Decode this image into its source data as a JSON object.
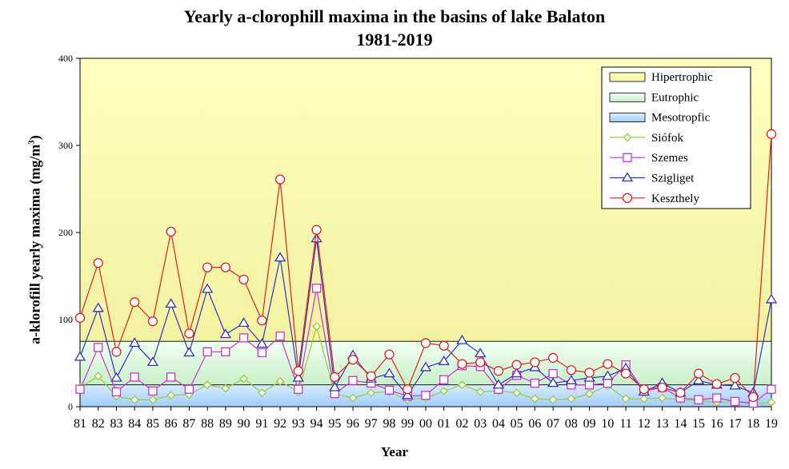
{
  "chart_data": {
    "type": "line",
    "title": "Yearly a-clorophill maxima in the basins of lake Balaton",
    "subtitle": "1981-2019",
    "ylabel": "a-klorofill yearly maxima (mg/m3)",
    "ylabel_main": "a-klorofill yearly maxima (mg/m",
    "ylabel_sup": "3",
    "ylabel_close": ")",
    "xlabel": "Year",
    "ylim": [
      0,
      400
    ],
    "yticks": [
      0,
      100,
      200,
      300,
      400
    ],
    "grid": false,
    "legend_position": "top-right",
    "categories": [
      "81",
      "82",
      "83",
      "84",
      "85",
      "86",
      "87",
      "88",
      "89",
      "90",
      "91",
      "92",
      "93",
      "94",
      "95",
      "96",
      "97",
      "98",
      "99",
      "00",
      "01",
      "02",
      "03",
      "04",
      "05",
      "06",
      "07",
      "08",
      "09",
      "10",
      "11",
      "12",
      "13",
      "14",
      "15",
      "16",
      "17",
      "18",
      "19"
    ],
    "bands": [
      {
        "name": "Hipertrophic",
        "from": 75,
        "to": 400,
        "color_top": "#ffffc0",
        "color_bottom": "#f2f2a0"
      },
      {
        "name": "Eutrophic",
        "from": 25,
        "to": 75,
        "color_top": "#f0fff0",
        "color_bottom": "#c8f0c8"
      },
      {
        "name": "Mesotropfic",
        "from": 0,
        "to": 25,
        "color_top": "#d8ecff",
        "color_bottom": "#9fcdfa"
      }
    ],
    "series": [
      {
        "name": "Siófok",
        "color": "#99cc33",
        "marker": "diamond",
        "values": [
          22,
          35,
          12,
          8,
          8,
          13,
          14,
          25,
          21,
          32,
          16,
          29,
          17,
          92,
          15,
          10,
          16,
          17,
          8,
          10,
          18,
          25,
          17,
          18,
          16,
          9,
          8,
          9,
          15,
          24,
          9,
          9,
          10,
          8,
          7,
          5,
          6,
          3,
          5
        ]
      },
      {
        "name": "Szemes",
        "color": "#cc33cc",
        "marker": "square",
        "values": [
          20,
          68,
          17,
          34,
          18,
          34,
          20,
          63,
          63,
          79,
          62,
          81,
          20,
          136,
          15,
          30,
          27,
          19,
          12,
          13,
          31,
          47,
          46,
          20,
          36,
          27,
          38,
          25,
          25,
          27,
          48,
          18,
          22,
          10,
          8,
          10,
          6,
          4,
          20
        ]
      },
      {
        "name": "Szigliget",
        "color": "#3333bb",
        "marker": "triangle",
        "values": [
          57,
          113,
          33,
          73,
          51,
          118,
          62,
          135,
          83,
          96,
          72,
          171,
          33,
          193,
          22,
          59,
          32,
          38,
          13,
          45,
          52,
          76,
          61,
          25,
          38,
          45,
          27,
          30,
          33,
          35,
          44,
          17,
          27,
          16,
          30,
          25,
          24,
          16,
          123
        ]
      },
      {
        "name": "Keszthely",
        "color": "#dd2222",
        "marker": "circle",
        "values": [
          102,
          165,
          63,
          120,
          98,
          201,
          84,
          160,
          160,
          146,
          99,
          261,
          41,
          203,
          34,
          54,
          35,
          60,
          20,
          73,
          70,
          49,
          51,
          41,
          48,
          51,
          56,
          42,
          39,
          49,
          38,
          20,
          22,
          16,
          38,
          26,
          33,
          11,
          313
        ]
      }
    ]
  }
}
